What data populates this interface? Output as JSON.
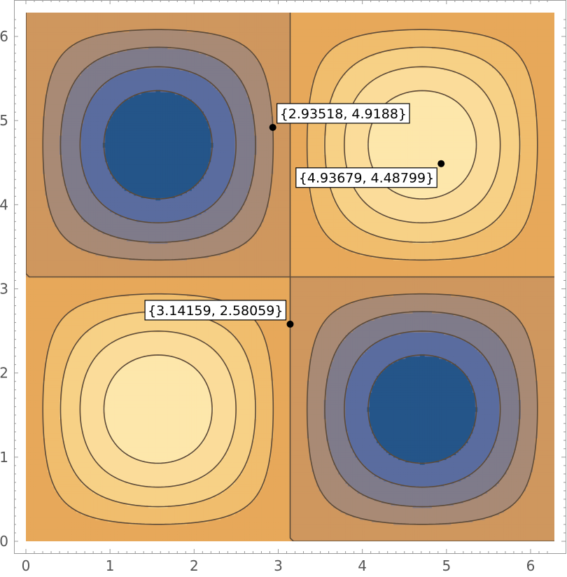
{
  "chart_data": {
    "type": "contour",
    "function": "sin(x) sin(y)",
    "xlim": [
      0,
      6.283185
    ],
    "ylim": [
      0,
      6.283185
    ],
    "x_ticks": [
      "0",
      "1",
      "2",
      "3",
      "4",
      "5",
      "6"
    ],
    "y_ticks": [
      "0",
      "1",
      "2",
      "3",
      "4",
      "5",
      "6"
    ],
    "contour_levels": [
      -0.8,
      -0.6,
      -0.4,
      -0.2,
      0,
      0.2,
      0.4,
      0.6,
      0.8
    ],
    "fill_colors": [
      "#245589",
      "#5a6c9f",
      "#7f7b8a",
      "#a98a75",
      "#cf975e",
      "#e7a85a",
      "#f0bd6d",
      "#f7d186",
      "#fbdc9a",
      "#fde7ab"
    ],
    "contour_line_color": "#5c4a38",
    "grid": false,
    "annotations": [
      {
        "x": 2.93518,
        "y": 4.9188,
        "label": "{2.93518, 4.9188}",
        "label_side": "top-right"
      },
      {
        "x": 4.93679,
        "y": 4.48799,
        "label": "{4.93679, 4.48799}",
        "label_side": "bottom-left"
      },
      {
        "x": 3.14159,
        "y": 2.58059,
        "label": "{3.14159, 2.58059}",
        "label_side": "top-left"
      }
    ]
  }
}
